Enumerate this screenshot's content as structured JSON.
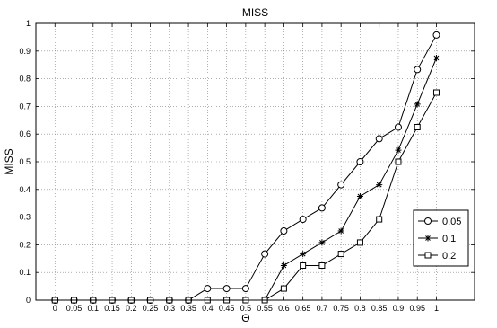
{
  "chart_data": {
    "type": "line",
    "title": "MISS",
    "xlabel": "Θ",
    "ylabel": "MISS",
    "xlim": [
      -0.05,
      1.1
    ],
    "ylim": [
      0,
      1
    ],
    "grid": true,
    "legend_position": "right",
    "x_ticks": [
      0,
      0.05,
      0.1,
      0.15,
      0.2,
      0.25,
      0.3,
      0.35,
      0.4,
      0.45,
      0.5,
      0.55,
      0.6,
      0.65,
      0.7,
      0.75,
      0.8,
      0.85,
      0.9,
      0.95,
      1
    ],
    "x_tick_labels": [
      "0",
      "0.05",
      "0.1",
      "0.15",
      "0.2",
      "0.25",
      "0.3",
      "0.35",
      "0.4",
      "0.45",
      "0.5",
      "0.55",
      "0.6",
      "0.65",
      "0.7",
      "0.75",
      "0.8",
      "0.85",
      "0.9",
      "0.95",
      "1"
    ],
    "y_ticks": [
      0,
      0.1,
      0.2,
      0.3,
      0.4,
      0.5,
      0.6,
      0.7,
      0.8,
      0.9,
      1
    ],
    "y_tick_labels": [
      "0",
      "0.1",
      "0.2",
      "0.3",
      "0.4",
      "0.5",
      "0.6",
      "0.7",
      "0.8",
      "0.9",
      "1"
    ],
    "x": [
      0,
      0.05,
      0.1,
      0.15,
      0.2,
      0.25,
      0.3,
      0.35,
      0.4,
      0.45,
      0.5,
      0.55,
      0.6,
      0.65,
      0.7,
      0.75,
      0.8,
      0.85,
      0.9,
      0.95,
      1
    ],
    "series": [
      {
        "name": "0.05",
        "marker": "circle",
        "values": [
          0,
          0,
          0,
          0,
          0,
          0,
          0,
          0,
          0.042,
          0.042,
          0.042,
          0.167,
          0.25,
          0.292,
          0.333,
          0.417,
          0.5,
          0.583,
          0.625,
          0.833,
          0.958
        ]
      },
      {
        "name": "0.1",
        "marker": "asterisk",
        "values": [
          0,
          0,
          0,
          0,
          0,
          0,
          0,
          0,
          0,
          0,
          0,
          0,
          0.125,
          0.167,
          0.208,
          0.25,
          0.375,
          0.417,
          0.542,
          0.708,
          0.875
        ]
      },
      {
        "name": "0.2",
        "marker": "square",
        "values": [
          0,
          0,
          0,
          0,
          0,
          0,
          0,
          0,
          0,
          0,
          0,
          0,
          0.042,
          0.125,
          0.125,
          0.167,
          0.208,
          0.292,
          0.5,
          0.625,
          0.75
        ]
      }
    ],
    "colors": {
      "line": "#000000",
      "grid": "#808080",
      "background": "#ffffff"
    }
  }
}
